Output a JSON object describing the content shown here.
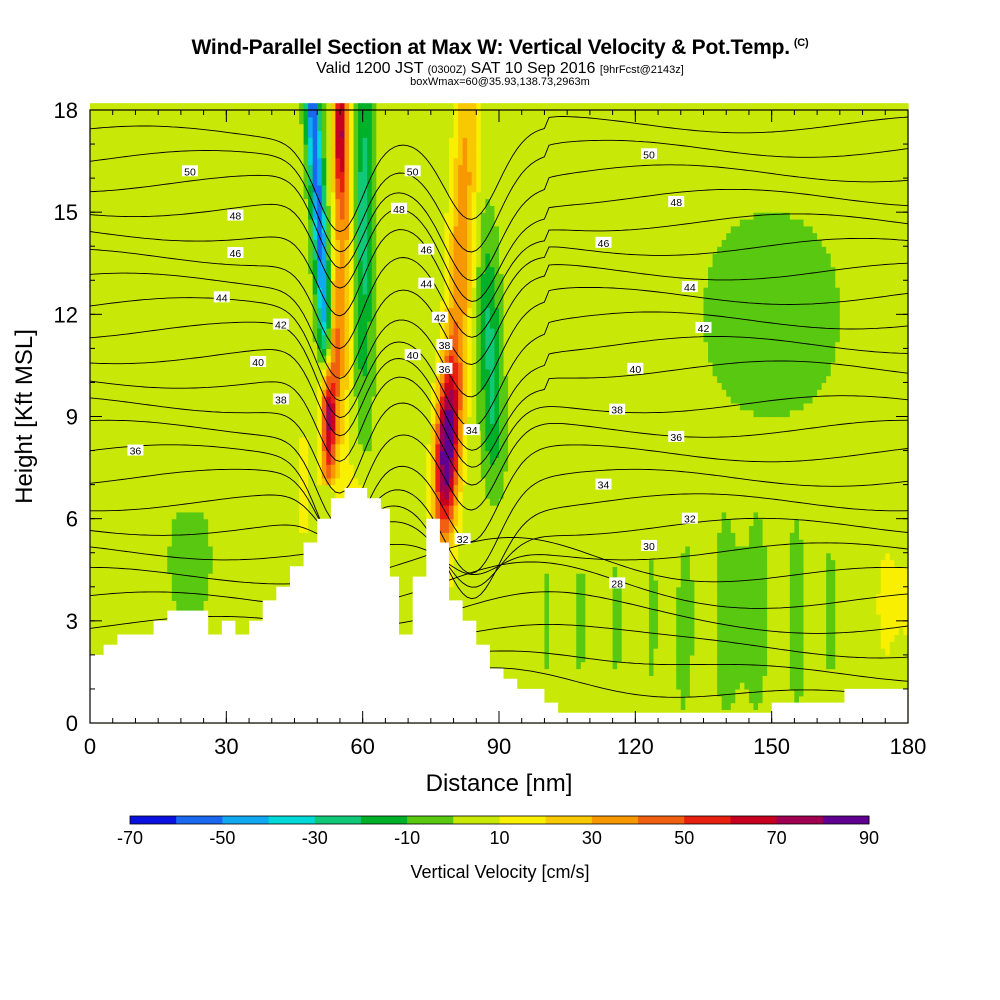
{
  "title": {
    "main": "Wind-Parallel Section at Max W: Vertical Velocity & Pot.Temp.",
    "copyright": "(C)",
    "valid_prefix": "Valid 1200 JST",
    "valid_zulu": "(0300Z)",
    "valid_date": "SAT 10 Sep 2016",
    "forecast": "[9hrFcst@2143z]",
    "box_info": "boxWmax=60@35.93,138.73,2963m"
  },
  "chart_data": {
    "type": "heatmap",
    "xlabel": "Distance [nm]",
    "ylabel": "Height [Kft MSL]",
    "xlim": [
      0,
      180
    ],
    "ylim": [
      0,
      18
    ],
    "x_ticks": [
      0,
      30,
      60,
      90,
      120,
      150,
      180
    ],
    "y_ticks": [
      0,
      3,
      6,
      9,
      12,
      15,
      18
    ],
    "colorbar": {
      "label": "Vertical Velocity [cm/s]",
      "tick_labels": [
        "-70",
        "-50",
        "-30",
        "-10",
        "10",
        "30",
        "50",
        "70",
        "90"
      ],
      "levels": [
        -70,
        -60,
        -50,
        -40,
        -30,
        -20,
        -10,
        0,
        10,
        20,
        30,
        40,
        50,
        60,
        70,
        80,
        90
      ],
      "colors": [
        "#0a10e0",
        "#1a68f0",
        "#10a8f0",
        "#00d8d8",
        "#10c878",
        "#00b028",
        "#58c810",
        "#c8e808",
        "#f8f000",
        "#f8c800",
        "#f89800",
        "#f06010",
        "#e82010",
        "#c80020",
        "#a00050",
        "#600090"
      ]
    },
    "terrain": [
      [
        0,
        2.0
      ],
      [
        3,
        2.0
      ],
      [
        3,
        2.3
      ],
      [
        6,
        2.3
      ],
      [
        6,
        2.6
      ],
      [
        14,
        2.6
      ],
      [
        14,
        3.0
      ],
      [
        17,
        3.0
      ],
      [
        17,
        3.3
      ],
      [
        26,
        3.3
      ],
      [
        26,
        2.6
      ],
      [
        29,
        2.6
      ],
      [
        29,
        3.0
      ],
      [
        32,
        3.0
      ],
      [
        32,
        2.6
      ],
      [
        35,
        2.6
      ],
      [
        35,
        3.0
      ],
      [
        38,
        3.0
      ],
      [
        38,
        3.6
      ],
      [
        41,
        3.6
      ],
      [
        41,
        4.0
      ],
      [
        44,
        4.0
      ],
      [
        44,
        4.6
      ],
      [
        47,
        4.6
      ],
      [
        47,
        5.3
      ],
      [
        50,
        5.3
      ],
      [
        50,
        6.0
      ],
      [
        53,
        6.0
      ],
      [
        53,
        6.6
      ],
      [
        56,
        6.6
      ],
      [
        56,
        6.9
      ],
      [
        61,
        6.9
      ],
      [
        61,
        6.6
      ],
      [
        64,
        6.6
      ],
      [
        64,
        6.3
      ],
      [
        66,
        6.3
      ],
      [
        66,
        4.3
      ],
      [
        68,
        4.3
      ],
      [
        68,
        2.6
      ],
      [
        71,
        2.6
      ],
      [
        71,
        4.3
      ],
      [
        74,
        4.3
      ],
      [
        74,
        6.0
      ],
      [
        77,
        6.0
      ],
      [
        77,
        5.3
      ],
      [
        79,
        5.3
      ],
      [
        79,
        3.6
      ],
      [
        82,
        3.6
      ],
      [
        82,
        3.0
      ],
      [
        85,
        3.0
      ],
      [
        85,
        2.3
      ],
      [
        88,
        2.3
      ],
      [
        88,
        1.6
      ],
      [
        91,
        1.6
      ],
      [
        91,
        1.3
      ],
      [
        94,
        1.3
      ],
      [
        94,
        1.0
      ],
      [
        100,
        1.0
      ],
      [
        100,
        0.6
      ],
      [
        103,
        0.6
      ],
      [
        103,
        0.3
      ],
      [
        150,
        0.3
      ],
      [
        150,
        0.6
      ],
      [
        166,
        0.6
      ],
      [
        166,
        1.0
      ],
      [
        180,
        1.0
      ]
    ],
    "theta_levels": [
      28,
      29,
      30,
      31,
      32,
      33,
      34,
      35,
      36,
      37,
      38,
      39,
      40,
      41,
      42,
      43,
      44,
      45,
      46,
      47,
      48,
      49,
      50,
      51
    ],
    "theta_labels": [
      {
        "text": "50",
        "x": 22,
        "y": 16.2
      },
      {
        "text": "48",
        "x": 32,
        "y": 14.9
      },
      {
        "text": "46",
        "x": 32,
        "y": 13.8
      },
      {
        "text": "44",
        "x": 29,
        "y": 12.5
      },
      {
        "text": "42",
        "x": 42,
        "y": 11.7
      },
      {
        "text": "40",
        "x": 37,
        "y": 10.6
      },
      {
        "text": "38",
        "x": 42,
        "y": 9.5
      },
      {
        "text": "36",
        "x": 10,
        "y": 8.0
      },
      {
        "text": "50",
        "x": 71,
        "y": 16.2
      },
      {
        "text": "48",
        "x": 68,
        "y": 15.1
      },
      {
        "text": "46",
        "x": 74,
        "y": 13.9
      },
      {
        "text": "44",
        "x": 74,
        "y": 12.9
      },
      {
        "text": "42",
        "x": 77,
        "y": 11.9
      },
      {
        "text": "40",
        "x": 71,
        "y": 10.8
      },
      {
        "text": "38",
        "x": 78,
        "y": 11.1
      },
      {
        "text": "36",
        "x": 78,
        "y": 10.4
      },
      {
        "text": "34",
        "x": 84,
        "y": 8.6
      },
      {
        "text": "32",
        "x": 82,
        "y": 5.4
      },
      {
        "text": "50",
        "x": 123,
        "y": 16.7
      },
      {
        "text": "48",
        "x": 129,
        "y": 15.3
      },
      {
        "text": "46",
        "x": 113,
        "y": 14.1
      },
      {
        "text": "44",
        "x": 132,
        "y": 12.8
      },
      {
        "text": "42",
        "x": 135,
        "y": 11.6
      },
      {
        "text": "40",
        "x": 120,
        "y": 10.4
      },
      {
        "text": "38",
        "x": 116,
        "y": 9.2
      },
      {
        "text": "36",
        "x": 129,
        "y": 8.4
      },
      {
        "text": "34",
        "x": 113,
        "y": 7.0
      },
      {
        "text": "32",
        "x": 132,
        "y": 6.0
      },
      {
        "text": "30",
        "x": 123,
        "y": 5.2
      },
      {
        "text": "28",
        "x": 116,
        "y": 4.1
      }
    ],
    "grid": false,
    "legend": "colorbar-bottom"
  }
}
